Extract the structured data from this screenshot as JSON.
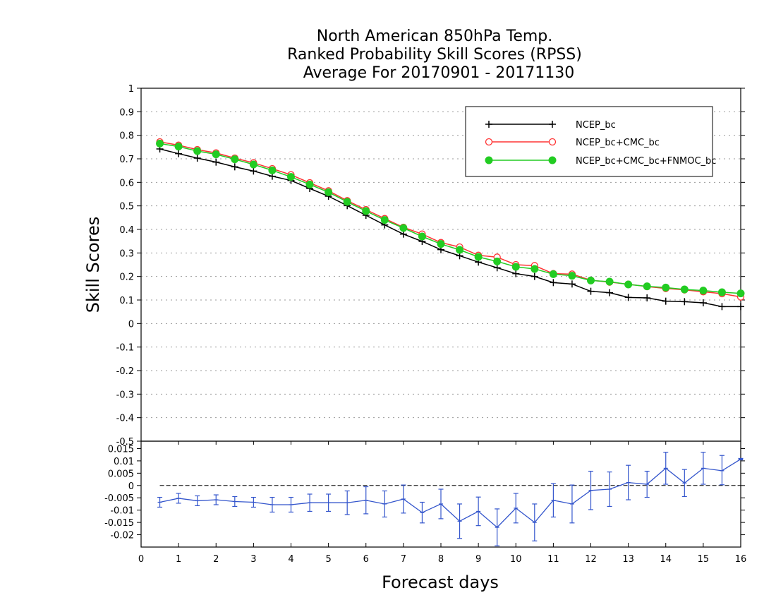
{
  "chart_data": [
    {
      "type": "line",
      "title_lines": [
        "North American 850hPa Temp.",
        "Ranked Probability Skill Scores (RPSS)",
        "Average For 20170901 - 20171130"
      ],
      "xlabel": "Forecast days",
      "ylabel": "Skill Scores",
      "xlim": [
        0,
        16
      ],
      "ylim": [
        -0.5,
        1
      ],
      "yticks": [
        "-0.4",
        "-0.3",
        "-0.2",
        "-0.1",
        "0",
        "0.1",
        "0.2",
        "0.3",
        "0.4",
        "0.5",
        "0.6",
        "0.7",
        "0.8",
        "0.9",
        "1"
      ],
      "ytick_values": [
        -0.4,
        -0.3,
        -0.2,
        -0.1,
        0,
        0.1,
        0.2,
        0.3,
        0.4,
        0.5,
        0.6,
        0.7,
        0.8,
        0.9,
        1
      ],
      "ybottom_label": "-0.5",
      "grid": true,
      "legend_position": "top-right",
      "x": [
        0.5,
        1,
        1.5,
        2,
        2.5,
        3,
        3.5,
        4,
        4.5,
        5,
        5.5,
        6,
        6.5,
        7,
        7.5,
        8,
        8.5,
        9,
        9.5,
        10,
        10.5,
        11,
        11.5,
        12,
        12.5,
        13,
        13.5,
        14,
        14.5,
        15,
        15.5,
        16
      ],
      "series": [
        {
          "name": "NCEP_bc",
          "color": "#000000",
          "marker": "plus",
          "values": [
            0.742,
            0.722,
            0.703,
            0.686,
            0.666,
            0.648,
            0.626,
            0.608,
            0.574,
            0.541,
            0.501,
            0.46,
            0.419,
            0.38,
            0.349,
            0.314,
            0.288,
            0.261,
            0.237,
            0.212,
            0.2,
            0.174,
            0.168,
            0.137,
            0.131,
            0.111,
            0.109,
            0.095,
            0.093,
            0.088,
            0.072,
            0.072
          ]
        },
        {
          "name": "NCEP_bc+CMC_bc",
          "color": "#ff3333",
          "marker": "open-circle",
          "values": [
            0.772,
            0.758,
            0.739,
            0.725,
            0.703,
            0.683,
            0.658,
            0.632,
            0.598,
            0.564,
            0.522,
            0.484,
            0.446,
            0.409,
            0.38,
            0.344,
            0.325,
            0.29,
            0.282,
            0.25,
            0.246,
            0.212,
            0.21,
            0.184,
            0.176,
            0.167,
            0.157,
            0.149,
            0.143,
            0.135,
            0.127,
            0.113
          ]
        },
        {
          "name": "NCEP_bc+CMC_bc+FNMOC_bc",
          "color": "#22cc22",
          "marker": "filled-circle",
          "values": [
            0.765,
            0.752,
            0.733,
            0.719,
            0.698,
            0.676,
            0.651,
            0.623,
            0.591,
            0.558,
            0.517,
            0.478,
            0.44,
            0.406,
            0.37,
            0.338,
            0.313,
            0.283,
            0.264,
            0.241,
            0.232,
            0.21,
            0.203,
            0.183,
            0.178,
            0.166,
            0.158,
            0.153,
            0.145,
            0.14,
            0.133,
            0.128
          ]
        }
      ]
    },
    {
      "type": "line",
      "xlabel": "Forecast days",
      "xlim": [
        0,
        16
      ],
      "ylim": [
        -0.025,
        0.018
      ],
      "xticks": [
        "0",
        "1",
        "2",
        "3",
        "4",
        "5",
        "6",
        "7",
        "8",
        "9",
        "10",
        "11",
        "12",
        "13",
        "14",
        "15",
        "16"
      ],
      "xtick_values": [
        0,
        1,
        2,
        3,
        4,
        5,
        6,
        7,
        8,
        9,
        10,
        11,
        12,
        13,
        14,
        15,
        16
      ],
      "yticks": [
        "-0.02",
        "-0.015",
        "-0.01",
        "-0.005",
        "0",
        "0.005",
        "0.01",
        "0.015"
      ],
      "ytick_values": [
        -0.02,
        -0.015,
        -0.01,
        -0.005,
        0,
        0.005,
        0.01,
        0.015
      ],
      "reference_line": 0,
      "series": [
        {
          "color": "#3355cc",
          "x": [
            0.5,
            1,
            1.5,
            2,
            2.5,
            3,
            3.5,
            4,
            4.5,
            5,
            5.5,
            6,
            6.5,
            7,
            7.5,
            8,
            8.5,
            9,
            9.5,
            10,
            10.5,
            11,
            11.5,
            12,
            12.5,
            13,
            13.5,
            14,
            14.5,
            15,
            15.5,
            16
          ],
          "values": [
            -0.0068,
            -0.0052,
            -0.0062,
            -0.0058,
            -0.0065,
            -0.0068,
            -0.0078,
            -0.0078,
            -0.007,
            -0.007,
            -0.007,
            -0.006,
            -0.0075,
            -0.0055,
            -0.011,
            -0.0075,
            -0.0145,
            -0.0105,
            -0.017,
            -0.0092,
            -0.015,
            -0.006,
            -0.0075,
            -0.002,
            -0.0015,
            0.0012,
            0.0005,
            0.007,
            0.001,
            0.007,
            0.006,
            0.0107
          ],
          "err_low": [
            -0.0088,
            -0.0072,
            -0.0082,
            -0.0078,
            -0.0085,
            -0.0088,
            -0.0108,
            -0.0108,
            -0.0105,
            -0.0105,
            -0.0118,
            -0.0115,
            -0.0128,
            -0.0112,
            -0.0152,
            -0.0135,
            -0.0215,
            -0.0163,
            -0.0245,
            -0.0152,
            -0.0225,
            -0.0128,
            -0.0152,
            -0.0098,
            -0.0085,
            -0.0058,
            -0.0048,
            0.0005,
            -0.0045,
            0.0005,
            0.0003,
            0.0104
          ],
          "err_high": [
            -0.0048,
            -0.0032,
            -0.0042,
            -0.0038,
            -0.0045,
            -0.0048,
            -0.0048,
            -0.0048,
            -0.0035,
            -0.0035,
            -0.0022,
            -0.0005,
            -0.0022,
            0.0002,
            -0.0068,
            -0.0015,
            -0.0075,
            -0.0047,
            -0.0095,
            -0.0032,
            -0.0075,
            0.0008,
            0.0002,
            0.0058,
            0.0055,
            0.0082,
            0.0058,
            0.0135,
            0.0065,
            0.0135,
            0.0122,
            0.011
          ]
        }
      ]
    }
  ]
}
